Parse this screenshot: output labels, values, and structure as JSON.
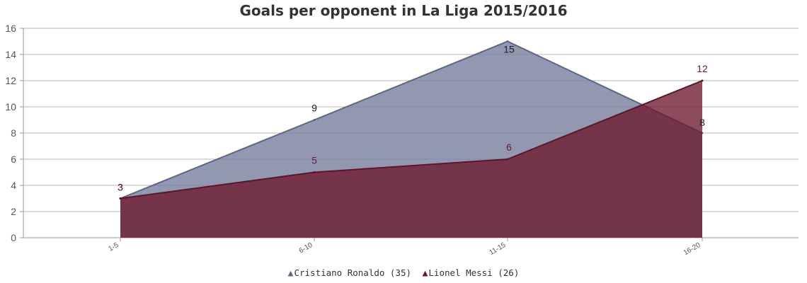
{
  "chart_data": {
    "type": "area",
    "title": "Goals per opponent in La Liga 2015/2016",
    "xlabel": "",
    "ylabel": "",
    "categories": [
      "1-5",
      "6-10",
      "11-15",
      "16-20"
    ],
    "ylim": [
      0,
      16
    ],
    "yticks": [
      0,
      2,
      4,
      6,
      8,
      10,
      12,
      14,
      16
    ],
    "grid": true,
    "legend_position": "bottom",
    "series": [
      {
        "name": "Cristiano Ronaldo (35)",
        "values": [
          3,
          9,
          15,
          8
        ],
        "data_labels": [
          "3",
          "9",
          "15",
          "8"
        ],
        "line_color": "#5c6585",
        "fill_color": "#7e86a1",
        "label_color": "#222222"
      },
      {
        "name": "Lionel Messi (26)",
        "values": [
          3,
          5,
          6,
          12
        ],
        "data_labels": [
          "3",
          "5",
          "6",
          "12"
        ],
        "line_color": "#6b0f24",
        "fill_color": "#6b1a30",
        "label_color": "#6b1a30"
      }
    ]
  }
}
